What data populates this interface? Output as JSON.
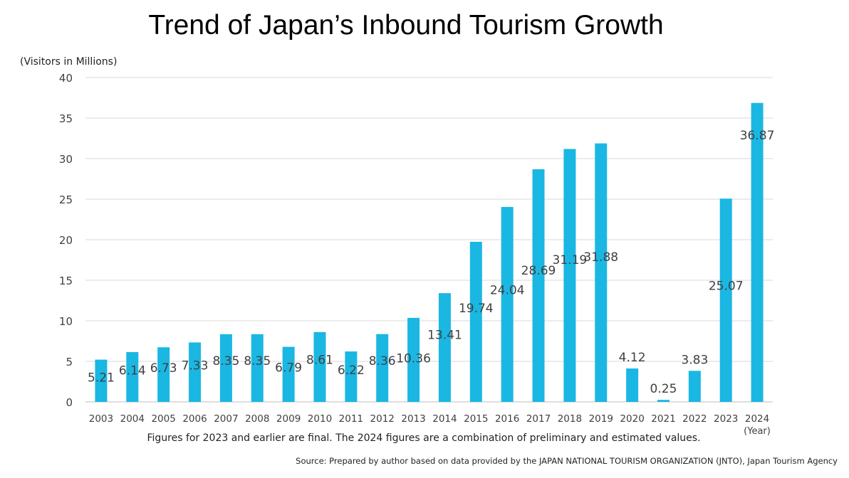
{
  "colors": {
    "bar": "#1AB7E3",
    "grid": "#d9d9d9",
    "text": "#404040"
  },
  "note": "Figures for 2023 and earlier are final. The 2024 figures are a combination of preliminary and estimated values.",
  "source": "Source: Prepared by author based on data provided by the JAPAN NATIONAL TOURISM ORGANIZATION (JNTO), Japan Tourism Agency",
  "chart_data": {
    "type": "bar",
    "title": "Trend of Japan’s Inbound Tourism Growth",
    "ylabel": "(Visitors in Millions)",
    "xlabel": "(Year)",
    "ylim": [
      0,
      40
    ],
    "yticks": [
      0,
      5,
      10,
      15,
      20,
      25,
      30,
      35,
      40
    ],
    "grid": true,
    "categories": [
      "2003",
      "2004",
      "2005",
      "2006",
      "2007",
      "2008",
      "2009",
      "2010",
      "2011",
      "2012",
      "2013",
      "2014",
      "2015",
      "2016",
      "2017",
      "2018",
      "2019",
      "2020",
      "2021",
      "2022",
      "2023",
      "2024"
    ],
    "values": [
      5.21,
      6.14,
      6.73,
      7.33,
      8.35,
      8.35,
      6.79,
      8.61,
      6.22,
      8.36,
      10.36,
      13.41,
      19.74,
      24.04,
      28.69,
      31.19,
      31.88,
      4.12,
      0.25,
      3.83,
      25.07,
      36.87
    ],
    "data_labels": [
      "5.21",
      "6.14",
      "6.73",
      "7.33",
      "8.35",
      "8.35",
      "6.79",
      "8.61",
      "6.22",
      "8.36",
      "10.36",
      "13.41",
      "19.74",
      "24.04",
      "28.69",
      "31.19",
      "31.88",
      "4.12",
      "0.25",
      "3.83",
      "25.07",
      "36.87"
    ]
  }
}
